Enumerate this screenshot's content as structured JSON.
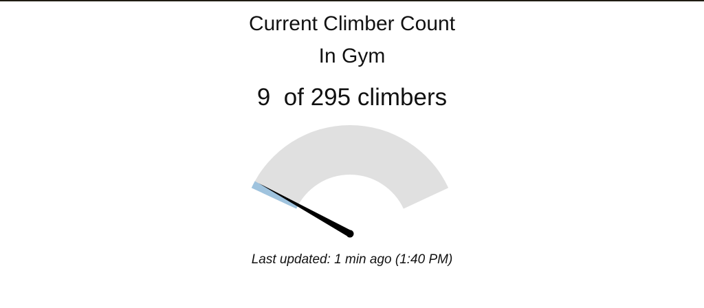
{
  "header": {
    "title_line1": "Current Climber Count",
    "title_line2": "In Gym"
  },
  "count": {
    "current": "9",
    "separator": "  of ",
    "capacity": "295",
    "unit": " climbers"
  },
  "gauge": {
    "value": 9,
    "max": 295,
    "fill_color": "#9fc3de",
    "track_color": "#e0e0e0",
    "needle_color": "#000000"
  },
  "footer": {
    "last_updated": "Last updated: 1 min ago (1:40 PM)"
  }
}
